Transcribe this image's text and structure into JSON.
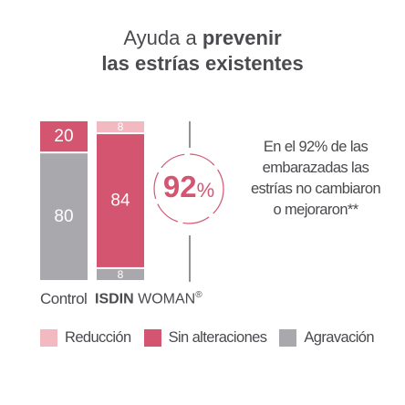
{
  "title": {
    "line1_prefix": "Ayuda a",
    "line1_bold": "prevenir",
    "line2": "las estrías existentes"
  },
  "highlight": {
    "value": "92",
    "unit": "%"
  },
  "side_text": "En el 92% de las embarazadas las estrías no cambiaron o mejoraron**",
  "x_labels": {
    "control": "Control",
    "isdin_brand": "ISDIN",
    "isdin_rest": "WOMAN",
    "isdin_mark": "®"
  },
  "legend": [
    {
      "label": "Reducción",
      "color": "#f2b9c1"
    },
    {
      "label": "Sin alteraciones",
      "color": "#d45570"
    },
    {
      "label": "Agravación",
      "color": "#a9a8ad"
    }
  ],
  "chart_data": {
    "type": "bar",
    "stacked": true,
    "categories": [
      "Control",
      "ISDIN WOMAN®"
    ],
    "series": [
      {
        "name": "Reducción",
        "values": [
          0,
          8
        ],
        "color": "#f2b9c1"
      },
      {
        "name": "Sin alteraciones",
        "values": [
          20,
          84
        ],
        "color": "#d45570"
      },
      {
        "name": "Agravación",
        "values": [
          80,
          8
        ],
        "color": "#a9a8ad"
      }
    ],
    "ylim": [
      0,
      100
    ],
    "unit": "%",
    "grid": false,
    "legend_position": "bottom"
  }
}
